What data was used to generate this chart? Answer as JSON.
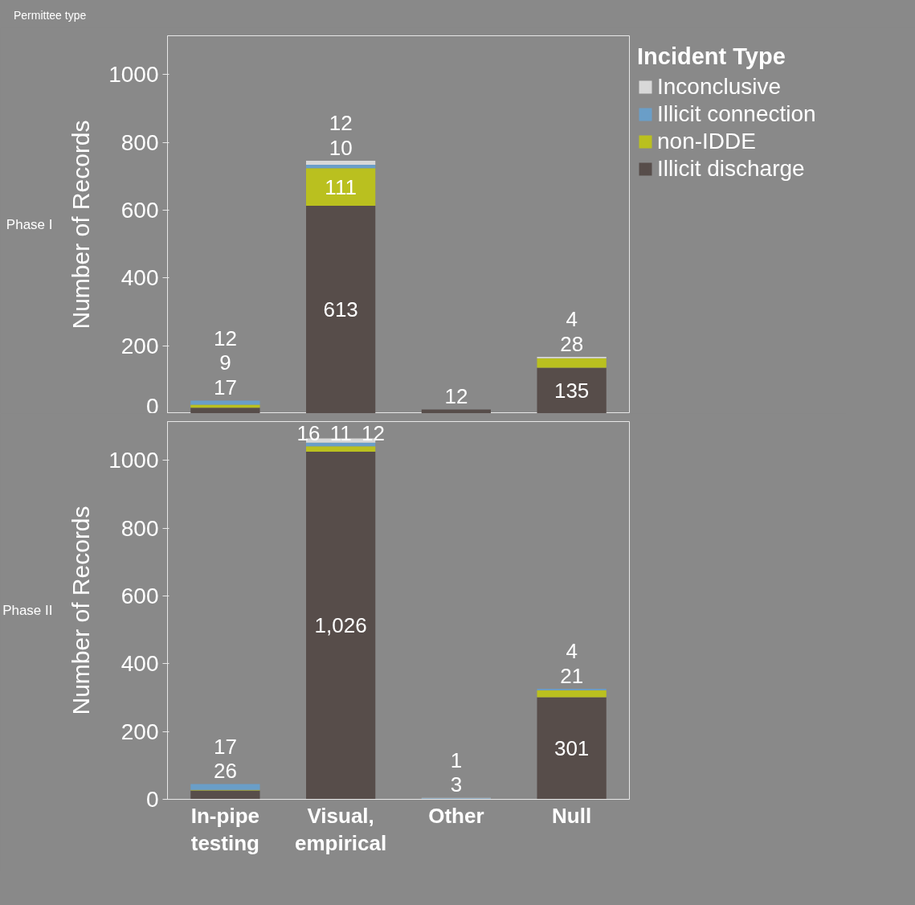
{
  "chart_data": [
    {
      "type": "bar",
      "stacked": true,
      "title": "Phase I",
      "annotations": [
        "Permittee type"
      ],
      "ylabel": "Number of Records",
      "legend_title": "Incident Type",
      "legend": "top right",
      "tick_labels": "y",
      "grid": false,
      "categories": [
        null,
        null,
        null,
        null
      ],
      "ylim": [
        0,
        1115
      ],
      "yticks": [
        0,
        200,
        400,
        600,
        800,
        1000
      ],
      "series": [
        {
          "name": "Illicit discharge",
          "color": "#574d4a",
          "values": [
            17,
            613,
            12,
            135
          ],
          "value_labels": [
            "17",
            "613",
            "12",
            "135"
          ]
        },
        {
          "name": "non-IDDE",
          "color": "#bac01f",
          "values": [
            9,
            111,
            null,
            28
          ],
          "value_labels": [
            "9",
            "111",
            null,
            "28"
          ]
        },
        {
          "name": "Illicit connection",
          "color": "#6a9ec8",
          "values": [
            12,
            10,
            null,
            null
          ],
          "value_labels": [
            "12",
            "10",
            null,
            null
          ]
        },
        {
          "name": "Inconclusive",
          "color": "#d8d8d8",
          "values": [
            null,
            12,
            null,
            4
          ],
          "value_labels": [
            null,
            "12",
            null,
            "4"
          ]
        }
      ]
    },
    {
      "type": "bar",
      "stacked": true,
      "title": "Phase II",
      "ylabel": "Number of Records",
      "grid": false,
      "categories": [
        "In-pipe testing",
        "Visual, empirical",
        "Other",
        "Null"
      ],
      "ylim": [
        0,
        1115
      ],
      "yticks": [
        0,
        200,
        400,
        600,
        800,
        1000
      ],
      "series": [
        {
          "color": "#574d4a",
          "values": [
            26,
            1026,
            null,
            301
          ],
          "value_labels": [
            "26",
            "1,026",
            null,
            "301"
          ]
        },
        {
          "color": "#bac01f",
          "values": [
            2,
            16,
            null,
            21
          ],
          "value_labels": [
            null,
            "16",
            null,
            "21"
          ]
        },
        {
          "color": "#6a9ec8",
          "values": [
            17,
            11,
            3,
            4
          ],
          "value_labels": [
            "17",
            "11",
            "3",
            "4"
          ]
        },
        {
          "color": "#d8d8d8",
          "values": [
            null,
            12,
            1,
            null
          ],
          "value_labels": [
            null,
            "12",
            "1",
            null
          ]
        }
      ]
    }
  ]
}
